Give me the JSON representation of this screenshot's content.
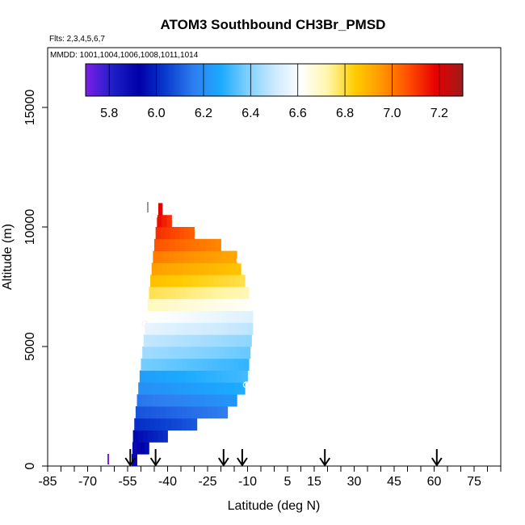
{
  "chart_data": {
    "type": "heatmap",
    "title": "ATOM3 Southbound CH3Br_PMSD",
    "flights_label": "Flts: 2,3,4,5,6,7",
    "mmdd_label": "MMDD: 1001,1004,1006,1008,1011,1014",
    "xlabel": "Latitude (deg N)",
    "ylabel": "Altitude (m)",
    "xlim": [
      -85,
      85
    ],
    "ylim": [
      0,
      17500
    ],
    "x_ticks": [
      -85,
      -70,
      -55,
      -40,
      -25,
      -10,
      5,
      15,
      30,
      45,
      60,
      75
    ],
    "x_tick_labels": [
      "-85",
      "-70",
      "-55",
      "-40",
      "-25",
      "-10",
      "5",
      "15",
      "30",
      "45",
      "60",
      "75"
    ],
    "y_ticks": [
      0,
      5000,
      10000,
      15000
    ],
    "y_tick_labels": [
      "0",
      "5000",
      "10000",
      "15000"
    ],
    "colorbar": {
      "min": 5.7,
      "max": 7.3,
      "ticks": [
        5.8,
        6.0,
        6.2,
        6.4,
        6.6,
        6.8,
        7.0,
        7.2
      ],
      "tick_labels": [
        "5.8",
        "6.0",
        "6.2",
        "6.4",
        "6.6",
        "6.8",
        "7.0",
        "7.2"
      ],
      "colors": [
        "#7a1fe6",
        "#1f1fc9",
        "#0000a8",
        "#0a3dd0",
        "#2f7df0",
        "#1aaaff",
        "#7cd0ff",
        "#cbe9ff",
        "#ffffff",
        "#fff6a8",
        "#ffcc00",
        "#ff9600",
        "#ff4c00",
        "#e60000",
        "#9e1a1a"
      ]
    },
    "arrow_latitudes": [
      -54,
      -44.5,
      -19,
      -12,
      19,
      61
    ],
    "markers": [
      {
        "lat": -45,
        "alt": 10450
      },
      {
        "lat": -48.5,
        "alt": 5950
      },
      {
        "lat": -13,
        "alt": 8600
      },
      {
        "lat": -10.5,
        "alt": 3400
      }
    ],
    "layers": [
      {
        "alt": 250,
        "lat_start": -53.5,
        "lat_end": -51.5,
        "value": 5.9
      },
      {
        "alt": 750,
        "lat_start": -53.2,
        "lat_end": -47.0,
        "value": 5.92
      },
      {
        "alt": 1250,
        "lat_start": -53.0,
        "lat_end": -40.0,
        "value": 5.98
      },
      {
        "alt": 1750,
        "lat_start": -52.5,
        "lat_end": -29.0,
        "value": 6.05
      },
      {
        "alt": 2250,
        "lat_start": -52.0,
        "lat_end": -17.5,
        "value": 6.12
      },
      {
        "alt": 2750,
        "lat_start": -51.5,
        "lat_end": -14.0,
        "value": 6.18
      },
      {
        "alt": 3250,
        "lat_start": -51.0,
        "lat_end": -11.0,
        "value": 6.24
      },
      {
        "alt": 3750,
        "lat_start": -50.5,
        "lat_end": -10.0,
        "value": 6.28
      },
      {
        "alt": 4250,
        "lat_start": -50.0,
        "lat_end": -9.5,
        "value": 6.34
      },
      {
        "alt": 4750,
        "lat_start": -49.5,
        "lat_end": -9.0,
        "value": 6.4
      },
      {
        "alt": 5250,
        "lat_start": -49.0,
        "lat_end": -8.5,
        "value": 6.45
      },
      {
        "alt": 5750,
        "lat_start": -48.5,
        "lat_end": -8.0,
        "value": 6.52
      },
      {
        "alt": 6250,
        "lat_start": -48.0,
        "lat_end": -8.0,
        "value": 6.58
      },
      {
        "alt": 6750,
        "lat_start": -47.5,
        "lat_end": -8.5,
        "value": 6.66
      },
      {
        "alt": 7250,
        "lat_start": -47.0,
        "lat_end": -9.5,
        "value": 6.75
      },
      {
        "alt": 7750,
        "lat_start": -46.5,
        "lat_end": -11.0,
        "value": 6.83
      },
      {
        "alt": 8250,
        "lat_start": -46.0,
        "lat_end": -12.5,
        "value": 6.9
      },
      {
        "alt": 8750,
        "lat_start": -45.5,
        "lat_end": -14.0,
        "value": 6.96
      },
      {
        "alt": 9250,
        "lat_start": -45.0,
        "lat_end": -20.0,
        "value": 7.02
      },
      {
        "alt": 9750,
        "lat_start": -44.5,
        "lat_end": -30.0,
        "value": 7.08
      },
      {
        "alt": 10250,
        "lat_start": -44.0,
        "lat_end": -38.5,
        "value": 7.14
      },
      {
        "alt": 10750,
        "lat_start": -43.5,
        "lat_end": -42.0,
        "value": 7.2
      }
    ]
  }
}
